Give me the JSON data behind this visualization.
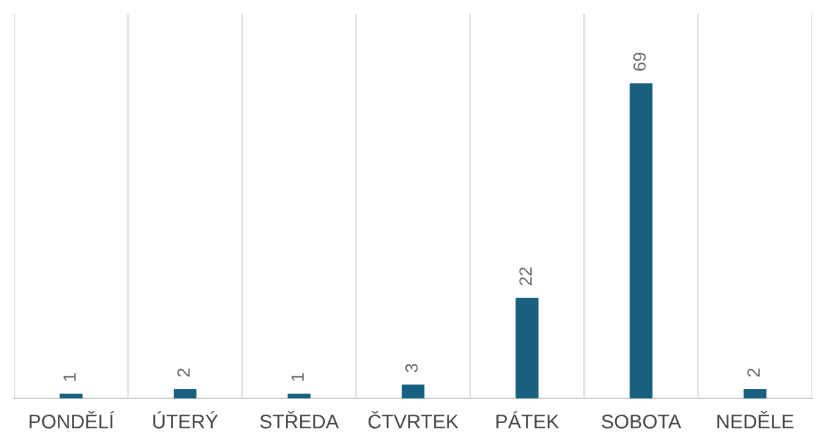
{
  "chart_data": {
    "type": "bar",
    "categories": [
      "PONDĚLÍ",
      "ÚTERÝ",
      "STŘEDA",
      "ČTVRTEK",
      "PÁTEK",
      "SOBOTA",
      "NEDĚLE"
    ],
    "values": [
      1,
      2,
      1,
      3,
      22,
      69,
      2
    ],
    "color": "#17607f",
    "data_labels": true,
    "grid": "x",
    "legend": false
  }
}
